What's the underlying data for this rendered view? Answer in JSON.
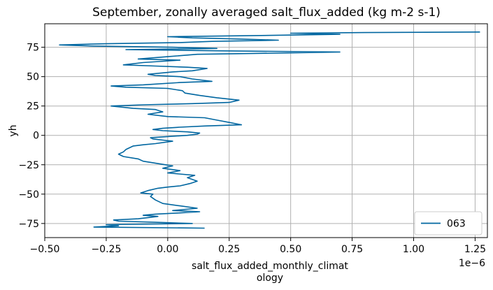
{
  "chart_data": {
    "type": "line",
    "title": "September, zonally averaged salt_flux_added (kg m-2 s-1)",
    "xlabel_lines": [
      "salt_flux_added_monthly_climat",
      "ology"
    ],
    "ylabel": "yh",
    "x_offset_label": "1e−6",
    "xlim": [
      -0.5,
      1.3
    ],
    "ylim": [
      -87,
      95
    ],
    "x_ticks": [
      -0.5,
      -0.25,
      0.0,
      0.25,
      0.5,
      0.75,
      1.0,
      1.25
    ],
    "x_tick_labels": [
      "−0.50",
      "−0.25",
      "0.00",
      "0.25",
      "0.50",
      "0.75",
      "1.00",
      "1.25"
    ],
    "y_ticks": [
      -75,
      -50,
      -25,
      0,
      25,
      50,
      75
    ],
    "y_tick_labels": [
      "−75",
      "−50",
      "−25",
      "0",
      "25",
      "50",
      "75"
    ],
    "grid": true,
    "legend_position": "lower-right",
    "series": [
      {
        "name": "063",
        "color": "#0066a0",
        "points": [
          [
            0.15,
            -79
          ],
          [
            -0.3,
            -78
          ],
          [
            -0.2,
            -77
          ],
          [
            -0.25,
            -76
          ],
          [
            0.1,
            -75
          ],
          [
            -0.05,
            -74
          ],
          [
            -0.2,
            -73
          ],
          [
            -0.22,
            -72
          ],
          [
            -0.12,
            -71
          ],
          [
            -0.08,
            -70
          ],
          [
            -0.04,
            -69
          ],
          [
            -0.1,
            -68
          ],
          [
            -0.05,
            -67
          ],
          [
            0.05,
            -66
          ],
          [
            0.13,
            -65
          ],
          [
            0.02,
            -64
          ],
          [
            0.12,
            -62
          ],
          [
            0.05,
            -60
          ],
          [
            -0.02,
            -58
          ],
          [
            -0.05,
            -55
          ],
          [
            -0.07,
            -52
          ],
          [
            -0.06,
            -50
          ],
          [
            -0.11,
            -49
          ],
          [
            -0.08,
            -47
          ],
          [
            -0.04,
            -45
          ],
          [
            0.0,
            -44
          ],
          [
            0.05,
            -43
          ],
          [
            0.09,
            -41
          ],
          [
            0.12,
            -39
          ],
          [
            0.08,
            -36
          ],
          [
            0.11,
            -34
          ],
          [
            0.0,
            -32
          ],
          [
            0.05,
            -30
          ],
          [
            -0.02,
            -28
          ],
          [
            0.02,
            -26
          ],
          [
            -0.04,
            -24
          ],
          [
            -0.1,
            -22
          ],
          [
            -0.12,
            -20
          ],
          [
            -0.18,
            -18
          ],
          [
            -0.2,
            -16
          ],
          [
            -0.18,
            -14
          ],
          [
            -0.17,
            -12
          ],
          [
            -0.14,
            -9
          ],
          [
            -0.1,
            -8
          ],
          [
            -0.05,
            -7
          ],
          [
            0.02,
            -5
          ],
          [
            -0.02,
            -4
          ],
          [
            -0.06,
            -3
          ],
          [
            -0.07,
            -2
          ],
          [
            0.0,
            -1
          ],
          [
            0.08,
            0
          ],
          [
            0.12,
            1
          ],
          [
            0.13,
            2
          ],
          [
            0.08,
            3
          ],
          [
            -0.02,
            4
          ],
          [
            -0.06,
            5
          ],
          [
            -0.02,
            6
          ],
          [
            0.05,
            7
          ],
          [
            0.15,
            8
          ],
          [
            0.3,
            9
          ],
          [
            0.25,
            11
          ],
          [
            0.2,
            13
          ],
          [
            0.15,
            15
          ],
          [
            0.0,
            16
          ],
          [
            -0.08,
            18
          ],
          [
            -0.02,
            20
          ],
          [
            -0.05,
            22
          ],
          [
            -0.14,
            23
          ],
          [
            -0.23,
            25
          ],
          [
            -0.1,
            26
          ],
          [
            0.1,
            27
          ],
          [
            0.25,
            28
          ],
          [
            0.29,
            30
          ],
          [
            0.2,
            32
          ],
          [
            0.13,
            34
          ],
          [
            0.07,
            36
          ],
          [
            0.06,
            38
          ],
          [
            0.0,
            40
          ],
          [
            -0.17,
            41
          ],
          [
            -0.23,
            42
          ],
          [
            -0.1,
            43
          ],
          [
            0.05,
            45
          ],
          [
            0.18,
            46
          ],
          [
            0.1,
            48
          ],
          [
            0.05,
            50
          ],
          [
            -0.05,
            51
          ],
          [
            -0.08,
            52
          ],
          [
            0.02,
            54
          ],
          [
            0.1,
            55
          ],
          [
            0.16,
            57
          ],
          [
            0.08,
            58
          ],
          [
            -0.05,
            59
          ],
          [
            -0.18,
            60
          ],
          [
            -0.1,
            62
          ],
          [
            0.05,
            64
          ],
          [
            -0.12,
            65
          ],
          [
            0.0,
            67
          ],
          [
            0.12,
            69
          ],
          [
            0.45,
            70
          ],
          [
            0.7,
            71
          ],
          [
            0.2,
            72
          ],
          [
            -0.17,
            73
          ],
          [
            0.2,
            74
          ],
          [
            0.02,
            75
          ],
          [
            -0.3,
            76
          ],
          [
            -0.44,
            77
          ],
          [
            -0.25,
            78
          ],
          [
            0.05,
            79
          ],
          [
            0.18,
            80
          ],
          [
            0.45,
            81
          ],
          [
            0.3,
            82
          ],
          [
            0.1,
            83
          ],
          [
            0.0,
            84
          ],
          [
            0.38,
            85
          ],
          [
            0.7,
            86
          ],
          [
            0.5,
            87
          ],
          [
            0.8,
            87.5
          ],
          [
            1.27,
            88
          ]
        ]
      }
    ]
  }
}
